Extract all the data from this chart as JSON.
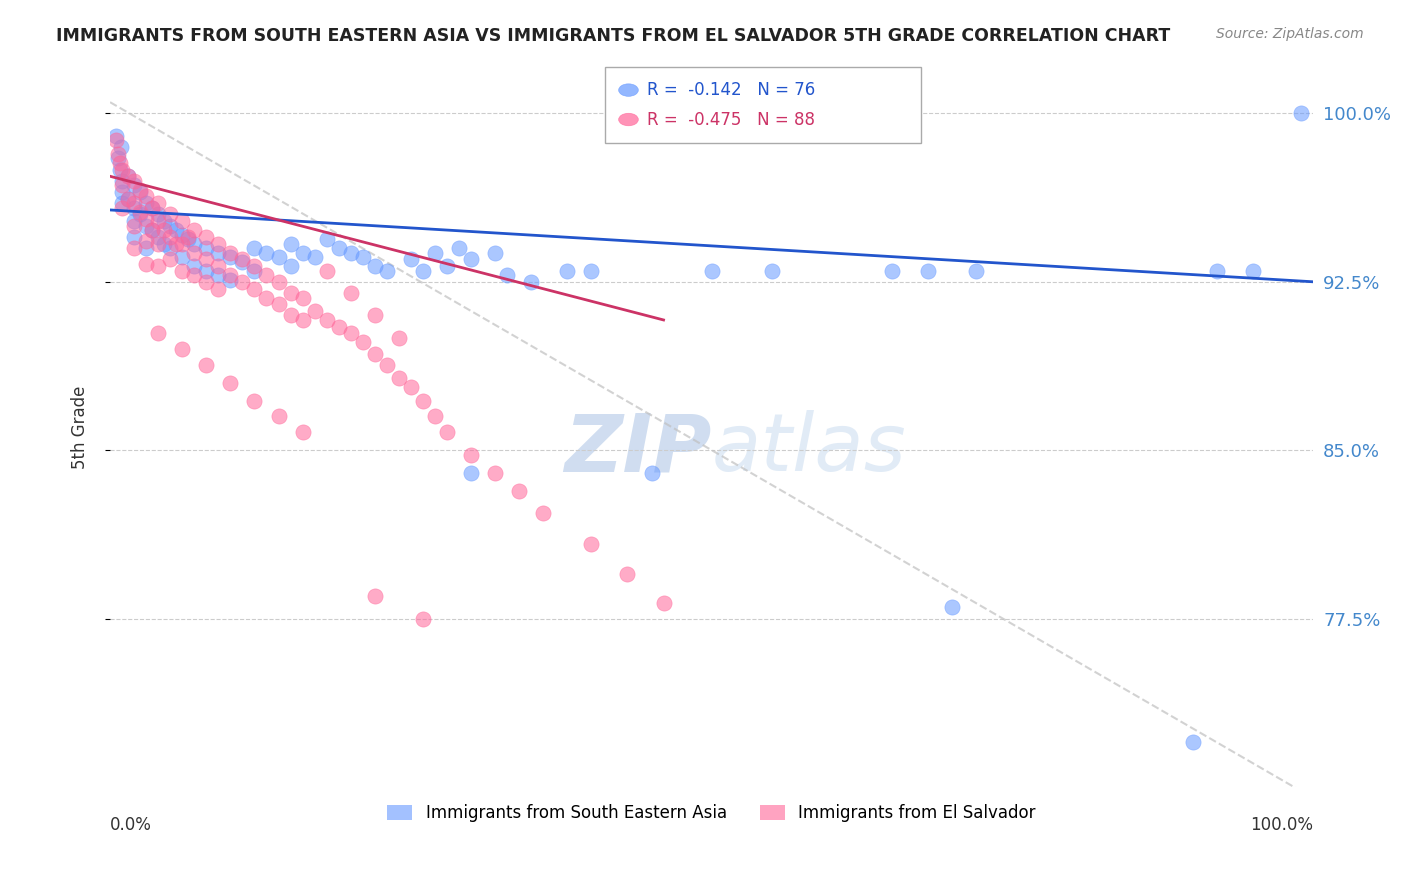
{
  "title": "IMMIGRANTS FROM SOUTH EASTERN ASIA VS IMMIGRANTS FROM EL SALVADOR 5TH GRADE CORRELATION CHART",
  "source": "Source: ZipAtlas.com",
  "ylabel": "5th Grade",
  "yticks": [
    0.775,
    0.85,
    0.925,
    1.0
  ],
  "ytick_labels": [
    "77.5%",
    "85.0%",
    "92.5%",
    "100.0%"
  ],
  "xmin": 0.0,
  "xmax": 1.0,
  "ymin": 0.7,
  "ymax": 1.02,
  "blue_R": -0.142,
  "blue_N": 76,
  "pink_R": -0.475,
  "pink_N": 88,
  "blue_color": "#6699ff",
  "pink_color": "#ff6699",
  "blue_line_color": "#2255cc",
  "pink_line_color": "#cc3366",
  "watermark_zip": "ZIP",
  "watermark_atlas": "atlas",
  "legend_blue": "Immigrants from South Eastern Asia",
  "legend_pink": "Immigrants from El Salvador",
  "blue_scatter_x": [
    0.005,
    0.007,
    0.008,
    0.009,
    0.01,
    0.01,
    0.01,
    0.015,
    0.015,
    0.02,
    0.02,
    0.02,
    0.02,
    0.025,
    0.025,
    0.03,
    0.03,
    0.03,
    0.035,
    0.035,
    0.04,
    0.04,
    0.045,
    0.045,
    0.05,
    0.05,
    0.055,
    0.06,
    0.06,
    0.065,
    0.07,
    0.07,
    0.08,
    0.08,
    0.09,
    0.09,
    0.1,
    0.1,
    0.11,
    0.12,
    0.12,
    0.13,
    0.14,
    0.15,
    0.15,
    0.16,
    0.17,
    0.18,
    0.19,
    0.2,
    0.21,
    0.22,
    0.23,
    0.25,
    0.26,
    0.27,
    0.28,
    0.29,
    0.3,
    0.32,
    0.33,
    0.35,
    0.38,
    0.4,
    0.45,
    0.5,
    0.55,
    0.65,
    0.68,
    0.72,
    0.9,
    0.92,
    0.95,
    0.99,
    0.7,
    0.3
  ],
  "blue_scatter_y": [
    0.99,
    0.98,
    0.975,
    0.985,
    0.97,
    0.965,
    0.96,
    0.972,
    0.962,
    0.968,
    0.958,
    0.952,
    0.945,
    0.965,
    0.955,
    0.96,
    0.95,
    0.94,
    0.958,
    0.948,
    0.955,
    0.945,
    0.952,
    0.942,
    0.95,
    0.94,
    0.948,
    0.946,
    0.936,
    0.944,
    0.942,
    0.932,
    0.94,
    0.93,
    0.938,
    0.928,
    0.936,
    0.926,
    0.934,
    0.94,
    0.93,
    0.938,
    0.936,
    0.942,
    0.932,
    0.938,
    0.936,
    0.944,
    0.94,
    0.938,
    0.936,
    0.932,
    0.93,
    0.935,
    0.93,
    0.938,
    0.932,
    0.94,
    0.935,
    0.938,
    0.928,
    0.925,
    0.93,
    0.93,
    0.84,
    0.93,
    0.93,
    0.93,
    0.93,
    0.93,
    0.72,
    0.93,
    0.93,
    1.0,
    0.78,
    0.84
  ],
  "pink_scatter_x": [
    0.005,
    0.007,
    0.008,
    0.01,
    0.01,
    0.01,
    0.015,
    0.015,
    0.02,
    0.02,
    0.02,
    0.02,
    0.025,
    0.025,
    0.03,
    0.03,
    0.03,
    0.03,
    0.035,
    0.035,
    0.04,
    0.04,
    0.04,
    0.04,
    0.045,
    0.05,
    0.05,
    0.05,
    0.055,
    0.06,
    0.06,
    0.06,
    0.065,
    0.07,
    0.07,
    0.07,
    0.08,
    0.08,
    0.08,
    0.09,
    0.09,
    0.09,
    0.1,
    0.1,
    0.11,
    0.11,
    0.12,
    0.12,
    0.13,
    0.13,
    0.14,
    0.14,
    0.15,
    0.15,
    0.16,
    0.16,
    0.17,
    0.18,
    0.19,
    0.2,
    0.21,
    0.22,
    0.23,
    0.24,
    0.25,
    0.26,
    0.27,
    0.28,
    0.3,
    0.32,
    0.34,
    0.36,
    0.4,
    0.43,
    0.46,
    0.2,
    0.22,
    0.24,
    0.16,
    0.14,
    0.12,
    0.1,
    0.08,
    0.06,
    0.04,
    0.18,
    0.22,
    0.26
  ],
  "pink_scatter_y": [
    0.988,
    0.982,
    0.978,
    0.975,
    0.968,
    0.958,
    0.972,
    0.962,
    0.97,
    0.96,
    0.95,
    0.94,
    0.966,
    0.956,
    0.963,
    0.953,
    0.943,
    0.933,
    0.958,
    0.948,
    0.96,
    0.952,
    0.942,
    0.932,
    0.948,
    0.955,
    0.945,
    0.935,
    0.942,
    0.952,
    0.942,
    0.93,
    0.945,
    0.948,
    0.938,
    0.928,
    0.945,
    0.935,
    0.925,
    0.942,
    0.932,
    0.922,
    0.938,
    0.928,
    0.935,
    0.925,
    0.932,
    0.922,
    0.928,
    0.918,
    0.925,
    0.915,
    0.92,
    0.91,
    0.918,
    0.908,
    0.912,
    0.908,
    0.905,
    0.902,
    0.898,
    0.893,
    0.888,
    0.882,
    0.878,
    0.872,
    0.865,
    0.858,
    0.848,
    0.84,
    0.832,
    0.822,
    0.808,
    0.795,
    0.782,
    0.92,
    0.91,
    0.9,
    0.858,
    0.865,
    0.872,
    0.88,
    0.888,
    0.895,
    0.902,
    0.93,
    0.785,
    0.775
  ]
}
